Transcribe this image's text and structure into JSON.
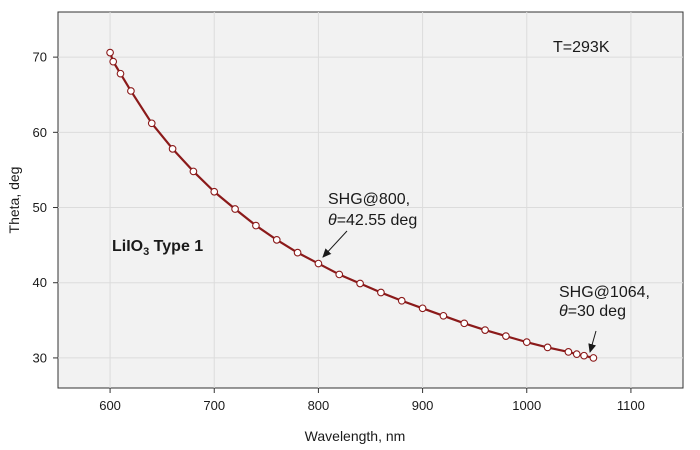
{
  "chart_data": {
    "type": "line",
    "xlabel": "Wavelength, nm",
    "ylabel": "Theta, deg",
    "xlim": [
      550,
      1150
    ],
    "ylim": [
      26,
      76
    ],
    "xticks": [
      600,
      700,
      800,
      900,
      1000,
      1100
    ],
    "yticks": [
      30,
      40,
      50,
      60,
      70
    ],
    "grid": true,
    "colors": {
      "line": "#8b1a1a",
      "marker_edge": "#8b1a1a",
      "marker_face": "#ffffff",
      "plot_bg": "#f2f2f2",
      "grid": "#dcdcdc"
    },
    "series": [
      {
        "x": [
          600,
          603,
          610,
          620,
          640,
          660,
          680,
          700,
          720,
          740,
          760,
          780,
          800,
          820,
          840,
          860,
          880,
          900,
          920,
          940,
          960,
          980,
          1000,
          1020,
          1040,
          1048,
          1055,
          1064
        ],
        "y": [
          70.6,
          69.4,
          67.8,
          65.5,
          61.2,
          57.8,
          54.8,
          52.1,
          49.8,
          47.6,
          45.7,
          44.0,
          42.55,
          41.1,
          39.9,
          38.7,
          37.6,
          36.6,
          35.6,
          34.6,
          33.7,
          32.9,
          32.1,
          31.4,
          30.8,
          30.5,
          30.3,
          30.0
        ]
      }
    ],
    "annotations": {
      "temperature": "T=293K",
      "crystal": "LiIO",
      "crystal_sub": "3",
      "crystal_type": " Type 1",
      "shg800_line1": "SHG@800,",
      "shg800_theta": "θ",
      "shg800_line2": "=42.55 deg",
      "shg1064_line1": "SHG@1064,",
      "shg1064_theta": "θ",
      "shg1064_line2": "=30 deg"
    }
  }
}
